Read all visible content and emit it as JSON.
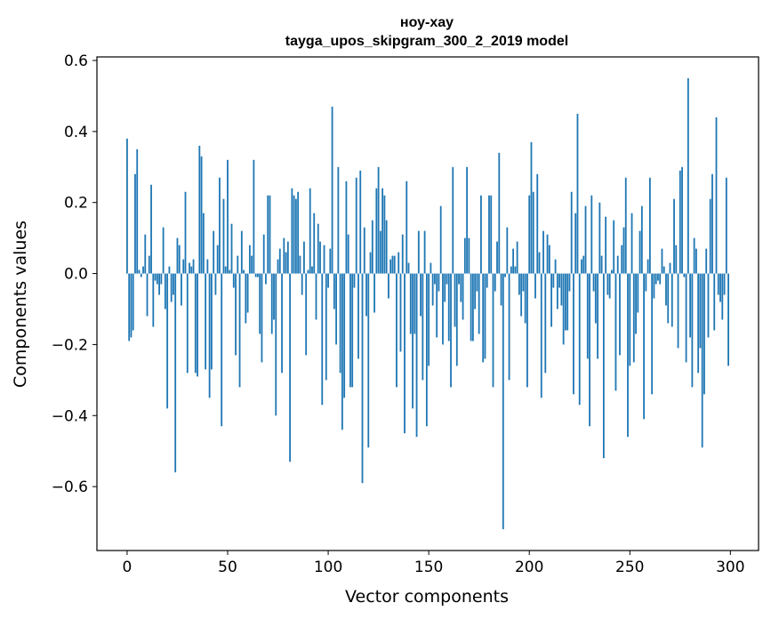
{
  "chart_data": {
    "type": "bar",
    "title": "ноу-хау",
    "subtitle": "tayga_upos_skipgram_300_2_2019 model",
    "xlabel": "Vector components",
    "ylabel": "Components values",
    "xlim": [
      -15,
      314
    ],
    "ylim": [
      -0.78,
      0.61
    ],
    "xticks": [
      0,
      50,
      100,
      150,
      200,
      250,
      300
    ],
    "xtick_labels": [
      "0",
      "50",
      "100",
      "150",
      "200",
      "250",
      "300"
    ],
    "yticks": [
      -0.6,
      -0.4,
      -0.2,
      0.0,
      0.2,
      0.4,
      0.6
    ],
    "ytick_labels": [
      "−0.6",
      "−0.4",
      "−0.2",
      "0.0",
      "0.2",
      "0.4",
      "0.6"
    ],
    "bar_color": "#1f77b4",
    "grid": false,
    "legend": "none",
    "x": [
      0,
      1,
      2,
      3,
      4,
      5,
      6,
      7,
      8,
      9,
      10,
      11,
      12,
      13,
      14,
      15,
      16,
      17,
      18,
      19,
      20,
      21,
      22,
      23,
      24,
      25,
      26,
      27,
      28,
      29,
      30,
      31,
      32,
      33,
      34,
      35,
      36,
      37,
      38,
      39,
      40,
      41,
      42,
      43,
      44,
      45,
      46,
      47,
      48,
      49,
      50,
      51,
      52,
      53,
      54,
      55,
      56,
      57,
      58,
      59,
      60,
      61,
      62,
      63,
      64,
      65,
      66,
      67,
      68,
      69,
      70,
      71,
      72,
      73,
      74,
      75,
      76,
      77,
      78,
      79,
      80,
      81,
      82,
      83,
      84,
      85,
      86,
      87,
      88,
      89,
      90,
      91,
      92,
      93,
      94,
      95,
      96,
      97,
      98,
      99,
      100,
      101,
      102,
      103,
      104,
      105,
      106,
      107,
      108,
      109,
      110,
      111,
      112,
      113,
      114,
      115,
      116,
      117,
      118,
      119,
      120,
      121,
      122,
      123,
      124,
      125,
      126,
      127,
      128,
      129,
      130,
      131,
      132,
      133,
      134,
      135,
      136,
      137,
      138,
      139,
      140,
      141,
      142,
      143,
      144,
      145,
      146,
      147,
      148,
      149,
      150,
      151,
      152,
      153,
      154,
      155,
      156,
      157,
      158,
      159,
      160,
      161,
      162,
      163,
      164,
      165,
      166,
      167,
      168,
      169,
      170,
      171,
      172,
      173,
      174,
      175,
      176,
      177,
      178,
      179,
      180,
      181,
      182,
      183,
      184,
      185,
      186,
      187,
      188,
      189,
      190,
      191,
      192,
      193,
      194,
      195,
      196,
      197,
      198,
      199,
      200,
      201,
      202,
      203,
      204,
      205,
      206,
      207,
      208,
      209,
      210,
      211,
      212,
      213,
      214,
      215,
      216,
      217,
      218,
      219,
      220,
      221,
      222,
      223,
      224,
      225,
      226,
      227,
      228,
      229,
      230,
      231,
      232,
      233,
      234,
      235,
      236,
      237,
      238,
      239,
      240,
      241,
      242,
      243,
      244,
      245,
      246,
      247,
      248,
      249,
      250,
      251,
      252,
      253,
      254,
      255,
      256,
      257,
      258,
      259,
      260,
      261,
      262,
      263,
      264,
      265,
      266,
      267,
      268,
      269,
      270,
      271,
      272,
      273,
      274,
      275,
      276,
      277,
      278,
      279,
      280,
      281,
      282,
      283,
      284,
      285,
      286,
      287,
      288,
      289,
      290,
      291,
      292,
      293,
      294,
      295,
      296,
      297,
      298,
      299
    ],
    "values": [
      0.38,
      -0.19,
      -0.18,
      -0.16,
      0.28,
      0.35,
      0.01,
      -0.01,
      0.02,
      0.11,
      -0.12,
      0.05,
      0.25,
      -0.15,
      -0.02,
      -0.03,
      -0.06,
      -0.03,
      0.13,
      -0.1,
      -0.38,
      0.02,
      -0.08,
      -0.06,
      -0.56,
      0.1,
      0.08,
      -0.09,
      0.04,
      0.23,
      -0.28,
      0.03,
      0.02,
      0.04,
      -0.28,
      -0.29,
      0.36,
      0.33,
      0.17,
      -0.27,
      0.04,
      -0.35,
      -0.27,
      0.12,
      -0.06,
      0.08,
      0.27,
      -0.43,
      0.21,
      0.02,
      0.32,
      0.01,
      0.14,
      -0.04,
      -0.23,
      0.05,
      -0.32,
      0.12,
      0.01,
      -0.14,
      -0.11,
      0.08,
      0.05,
      0.32,
      -0.01,
      -0.01,
      -0.17,
      -0.25,
      0.11,
      -0.03,
      0.22,
      0.22,
      -0.17,
      -0.13,
      -0.4,
      0.04,
      0.07,
      -0.28,
      0.1,
      0.06,
      0.09,
      -0.53,
      0.24,
      0.22,
      0.21,
      0.23,
      0.05,
      -0.06,
      0.09,
      -0.23,
      0.01,
      0.24,
      0.02,
      0.17,
      -0.13,
      0.14,
      0.09,
      -0.37,
      0.08,
      -0.3,
      -0.04,
      0.07,
      0.47,
      -0.1,
      -0.2,
      0.3,
      -0.28,
      -0.44,
      -0.35,
      0.26,
      0.11,
      -0.32,
      -0.32,
      -0.04,
      0.27,
      -0.24,
      0.29,
      -0.59,
      0.13,
      -0.12,
      -0.49,
      0.06,
      0.15,
      -0.11,
      0.24,
      0.3,
      0.12,
      0.24,
      0.22,
      0.15,
      -0.07,
      0.04,
      0.05,
      0.05,
      -0.32,
      0.06,
      -0.22,
      0.11,
      -0.45,
      0.26,
      0.03,
      -0.17,
      -0.38,
      -0.17,
      -0.46,
      0.12,
      -0.12,
      -0.3,
      0.12,
      -0.43,
      -0.26,
      0.03,
      -0.09,
      -0.03,
      -0.18,
      -0.05,
      0.19,
      -0.2,
      -0.08,
      -0.03,
      -0.19,
      -0.32,
      0.3,
      -0.15,
      -0.26,
      -0.03,
      -0.08,
      -0.13,
      0.1,
      0.3,
      0.1,
      -0.19,
      -0.19,
      -0.1,
      -0.05,
      -0.17,
      0.22,
      -0.25,
      -0.24,
      -0.04,
      0.22,
      0.22,
      -0.32,
      -0.05,
      0.09,
      0.34,
      -0.09,
      -0.72,
      -0.01,
      0.13,
      -0.3,
      0.02,
      0.07,
      0.02,
      0.09,
      -0.06,
      -0.12,
      -0.05,
      -0.14,
      -0.32,
      0.22,
      0.37,
      0.23,
      -0.07,
      0.28,
      0.06,
      -0.35,
      0.12,
      -0.28,
      0.11,
      0.08,
      -0.15,
      -0.04,
      0.04,
      -0.1,
      -0.04,
      -0.09,
      -0.2,
      -0.16,
      -0.16,
      -0.05,
      0.23,
      -0.34,
      0.17,
      0.45,
      -0.37,
      0.04,
      0.05,
      0.19,
      -0.24,
      -0.43,
      0.22,
      -0.05,
      -0.14,
      -0.24,
      0.2,
      0.05,
      -0.52,
      0.16,
      -0.06,
      -0.07,
      0.01,
      0.15,
      -0.33,
      0.05,
      -0.23,
      0.08,
      0.13,
      0.27,
      -0.46,
      -0.26,
      0.17,
      -0.25,
      -0.17,
      -0.11,
      0.12,
      0.19,
      -0.41,
      -0.05,
      0.04,
      0.27,
      -0.34,
      -0.07,
      -0.03,
      -0.02,
      -0.03,
      0.07,
      0.02,
      -0.09,
      -0.14,
      0.03,
      -0.15,
      0.21,
      0.08,
      -0.21,
      0.29,
      0.3,
      -0.01,
      -0.25,
      0.55,
      -0.18,
      -0.32,
      0.1,
      0.07,
      -0.28,
      -0.21,
      -0.49,
      -0.34,
      0.07,
      -0.18,
      0.21,
      0.28,
      -0.16,
      0.44,
      -0.06,
      -0.08,
      -0.13,
      -0.06,
      0.27,
      -0.26
    ]
  }
}
